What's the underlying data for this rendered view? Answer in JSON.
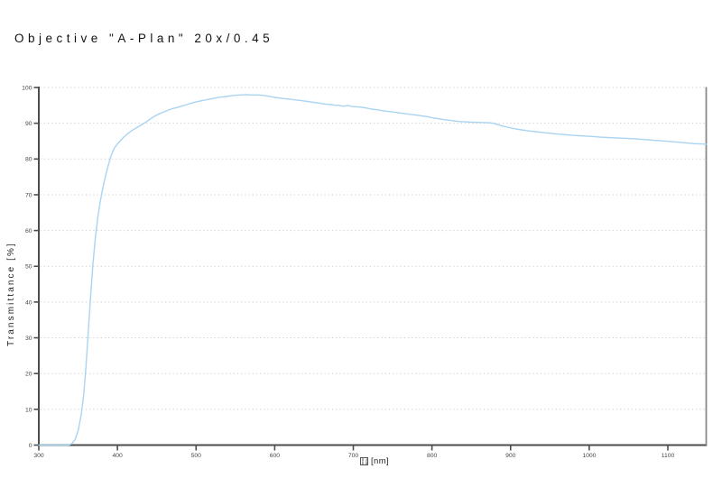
{
  "title": "Objective \"A-Plan\" 20x/0.45",
  "colors": {
    "background": "#ffffff",
    "curve": "#a9d4f2",
    "axis": "#4d4d4d",
    "grid": "#cbcbcb",
    "right_border": "#8a8a8a",
    "tick_label": "#474747",
    "title_text": "#111111"
  },
  "chart_data": {
    "type": "line",
    "title": "Objective \"A-Plan\" 20x/0.45",
    "xlabel_glyph_hex": "03BB",
    "xlabel_unit": "[nm]",
    "ylabel": "Transmittance [%]",
    "xlim": [
      300,
      1149
    ],
    "ylim": [
      0,
      100
    ],
    "xticks": [
      300,
      400,
      500,
      600,
      700,
      800,
      900,
      1000,
      1100
    ],
    "yticks": [
      0,
      10,
      20,
      30,
      40,
      50,
      60,
      70,
      80,
      90,
      100
    ],
    "grid": "horizontal dotted lines at every 10%",
    "legend": "none",
    "series": [
      {
        "name": "transmittance",
        "color": "#a9d4f2",
        "x": [
          300,
          338,
          342,
          346,
          350,
          354,
          357,
          360,
          363,
          366,
          369,
          372,
          375,
          378,
          381,
          384,
          388,
          392,
          396,
          400,
          404,
          408,
          412,
          416,
          420,
          425,
          430,
          434,
          440,
          446,
          452,
          458,
          464,
          470,
          476,
          482,
          488,
          494,
          500,
          507,
          514,
          521,
          528,
          535,
          542,
          549,
          556,
          564,
          572,
          580,
          588,
          596,
          604,
          612,
          620,
          628,
          635,
          642,
          648,
          654,
          660,
          666,
          672,
          678,
          681,
          687,
          693,
          699,
          705,
          711,
          717,
          723,
          729,
          735,
          741,
          747,
          753,
          759,
          765,
          771,
          777,
          783,
          789,
          795,
          801,
          807,
          813,
          819,
          825,
          831,
          837,
          843,
          850,
          858,
          866,
          872,
          878,
          884,
          890,
          896,
          902,
          908,
          914,
          920,
          926,
          932,
          940,
          948,
          956,
          964,
          972,
          980,
          988,
          996,
          1004,
          1014,
          1024,
          1034,
          1044,
          1054,
          1064,
          1074,
          1084,
          1094,
          1104,
          1114,
          1124,
          1134,
          1142,
          1149
        ],
        "values": [
          0,
          0,
          0.4,
          1.5,
          4,
          8.5,
          14,
          22,
          32,
          42,
          51,
          58,
          63.5,
          68,
          71.5,
          74.5,
          78,
          81,
          83,
          84.2,
          85.2,
          86.1,
          86.9,
          87.6,
          88.2,
          88.8,
          89.5,
          90,
          90.9,
          91.8,
          92.5,
          93.1,
          93.6,
          94.1,
          94.4,
          94.8,
          95.2,
          95.6,
          96,
          96.3,
          96.6,
          96.9,
          97.2,
          97.4,
          97.6,
          97.8,
          97.9,
          98,
          97.9,
          97.9,
          97.7,
          97.4,
          97.1,
          96.9,
          96.7,
          96.5,
          96.3,
          96.1,
          95.9,
          95.7,
          95.5,
          95.3,
          95.2,
          95,
          95.05,
          94.75,
          94.95,
          94.65,
          94.6,
          94.45,
          94.25,
          93.95,
          93.8,
          93.6,
          93.4,
          93.25,
          93.1,
          92.9,
          92.7,
          92.5,
          92.35,
          92.2,
          92,
          91.8,
          91.5,
          91.3,
          91.1,
          90.9,
          90.75,
          90.6,
          90.45,
          90.4,
          90.3,
          90.25,
          90.2,
          90.15,
          90,
          89.6,
          89.2,
          88.9,
          88.6,
          88.35,
          88.15,
          87.95,
          87.8,
          87.65,
          87.45,
          87.25,
          87.05,
          86.9,
          86.75,
          86.6,
          86.5,
          86.4,
          86.3,
          86.1,
          86,
          85.9,
          85.8,
          85.7,
          85.55,
          85.4,
          85.2,
          85.05,
          84.9,
          84.7,
          84.5,
          84.3,
          84.2,
          84.1
        ]
      }
    ]
  }
}
